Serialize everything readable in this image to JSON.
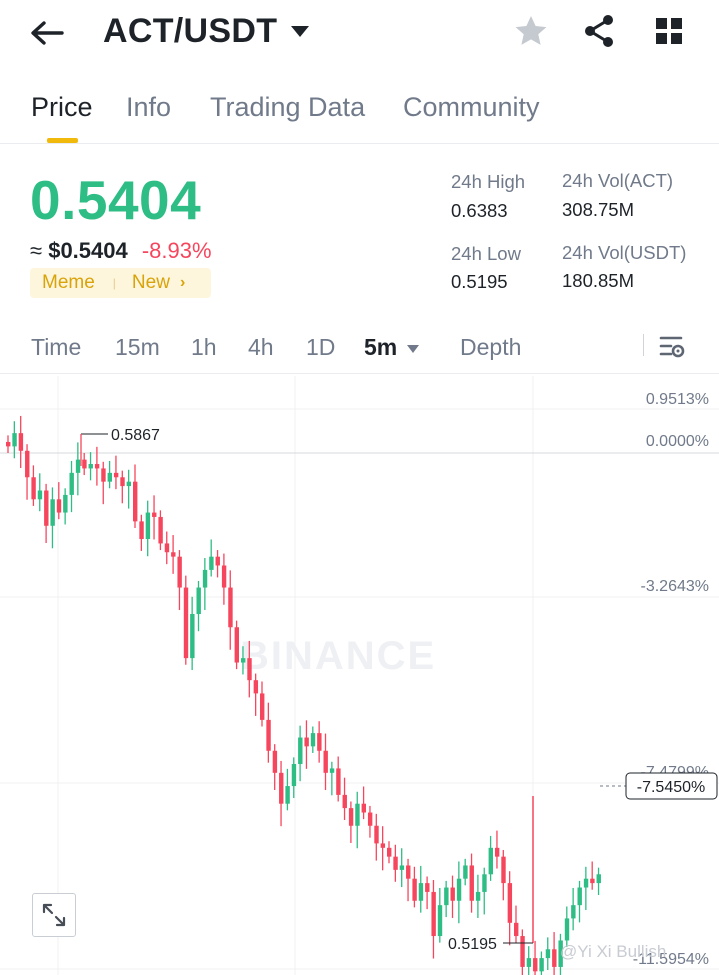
{
  "header": {
    "pair": "ACT/USDT",
    "icons": [
      "back-arrow-icon",
      "caret-down-icon",
      "star-icon",
      "share-icon",
      "grid-icon"
    ]
  },
  "tabs": [
    {
      "label": "Price",
      "active": true
    },
    {
      "label": "Info",
      "active": false
    },
    {
      "label": "Trading Data",
      "active": false
    },
    {
      "label": "Community",
      "active": false
    }
  ],
  "price": {
    "last": "0.5404",
    "approx_prefix": "≈",
    "usd": "$0.5404",
    "change": "-8.93%",
    "tags": [
      "Meme",
      "New"
    ]
  },
  "stats": {
    "high_label": "24h High",
    "high": "0.6383",
    "low_label": "24h Low",
    "low": "0.5195",
    "vol_act_label": "24h Vol(ACT)",
    "vol_act": "308.75M",
    "vol_usdt_label": "24h Vol(USDT)",
    "vol_usdt": "180.85M"
  },
  "intervals": {
    "items": [
      {
        "label": "Time",
        "active": false
      },
      {
        "label": "15m",
        "active": false
      },
      {
        "label": "1h",
        "active": false
      },
      {
        "label": "4h",
        "active": false
      },
      {
        "label": "1D",
        "active": false
      },
      {
        "label": "5m",
        "active": true
      },
      {
        "label": "Depth",
        "active": false
      }
    ]
  },
  "chart_data": {
    "type": "candlestick",
    "axis_labels": [
      "0.9513%",
      "0.0000%",
      "-3.2643%",
      "-7.4799%",
      "-11.5954%"
    ],
    "current_label": "-7.5450%",
    "high_marker": "0.5867",
    "low_marker": "0.5195",
    "watermark": "BINANCE",
    "ohlc_start": 0.5895,
    "changes_pct": [
      -0.1,
      0.3,
      -0.4,
      -0.6,
      -0.5,
      0.2,
      -0.8,
      0.6,
      -0.3,
      0.4,
      0.5,
      0.3,
      -0.2,
      0.1,
      -0.1,
      -0.3,
      0.2,
      -0.1,
      -0.2,
      0.1,
      -0.9,
      -0.4,
      0.6,
      -0.1,
      -0.6,
      -0.2,
      -0.1,
      -0.7,
      -1.6,
      1.0,
      0.6,
      0.4,
      0.3,
      -0.2,
      -0.5,
      -0.9,
      -0.8,
      0.1,
      -0.5,
      -0.3,
      -0.6,
      -0.7,
      -0.5,
      -0.7,
      0.4,
      0.5,
      0.6,
      -0.2,
      0.3,
      -0.4,
      -0.5,
      0.1,
      -0.6,
      -0.3,
      -0.4,
      0.5,
      -0.2,
      -0.3,
      -0.4,
      -0.1,
      -0.2,
      -0.3,
      0.1,
      -0.3,
      -0.5,
      0.4,
      -0.2,
      -1.0,
      0.7,
      0.4,
      -0.3,
      0.5,
      0.3,
      -0.8,
      0.2,
      0.4,
      0.6,
      -0.2,
      -0.6,
      -0.9,
      -0.3,
      -0.7,
      0.2,
      -0.3,
      0.3,
      0.2,
      -0.4,
      0.6,
      0.5,
      0.3,
      0.4,
      0.2,
      -0.1,
      0.2
    ]
  },
  "branding": {
    "credit": "@Yi Xi Bullish"
  },
  "colors": {
    "up": "#2ebd85",
    "down": "#f6465d",
    "accent": "#f0b90b"
  }
}
